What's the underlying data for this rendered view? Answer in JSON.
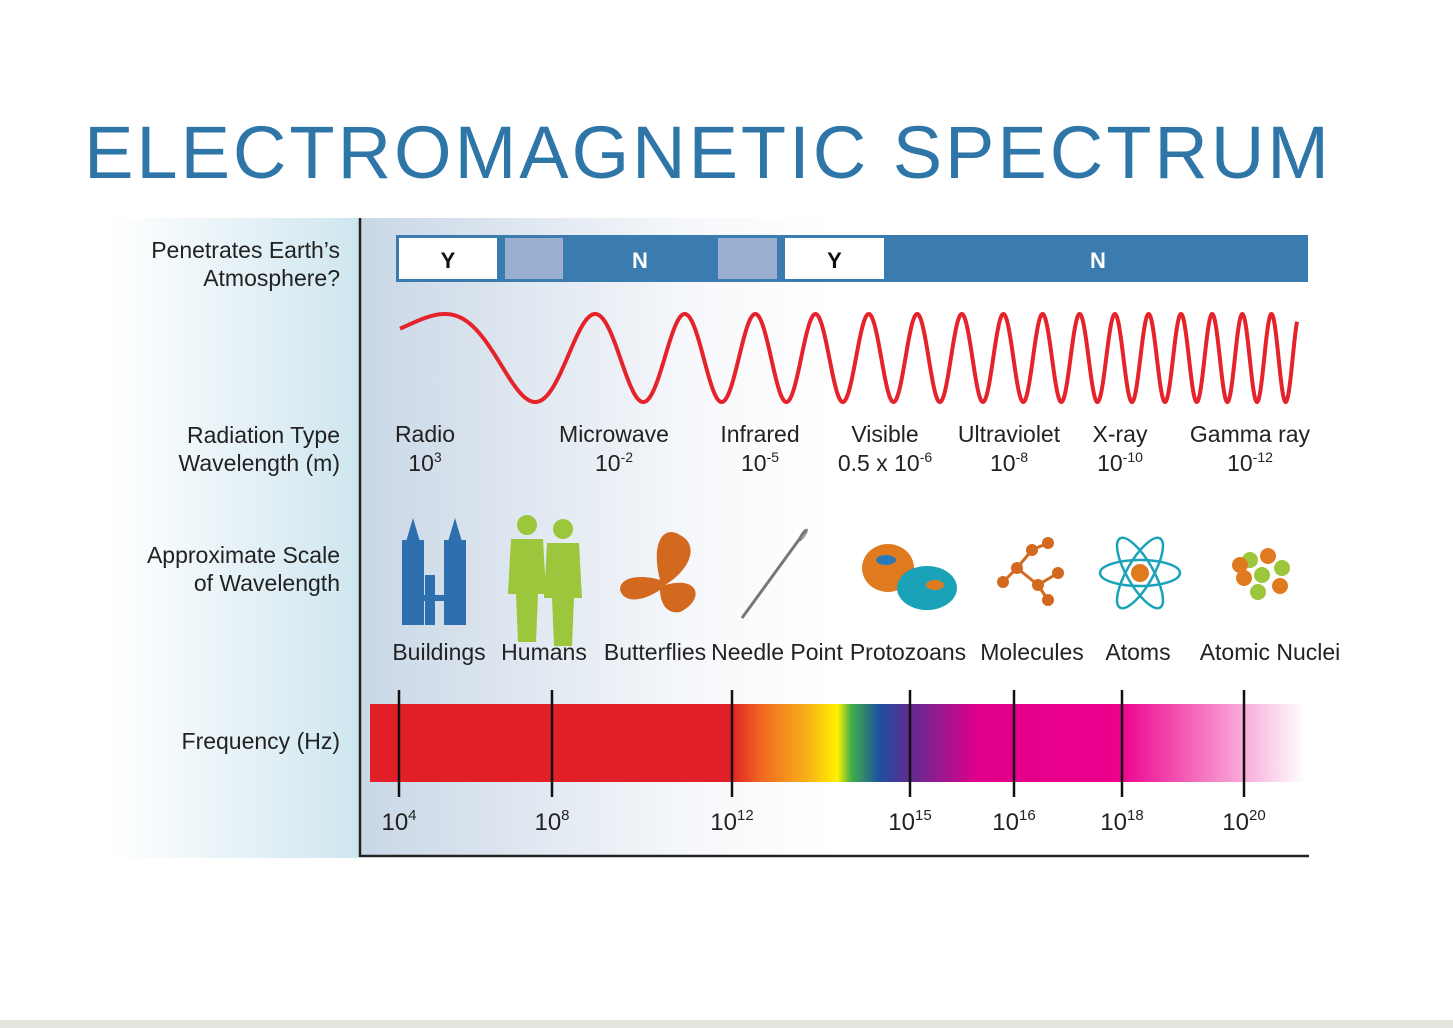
{
  "title": "ELECTROMAGNETIC SPECTRUM",
  "row_labels": {
    "atmosphere": [
      "Penetrates Earth’s",
      "Atmosphere?"
    ],
    "radiation": [
      "Radiation Type",
      "Wavelength (m)"
    ],
    "scale": [
      "Approximate Scale",
      "of Wavelength"
    ],
    "frequency": [
      "Frequency (Hz)"
    ]
  },
  "atmosphere": [
    "Y",
    "N",
    "Y",
    "N"
  ],
  "radiation_types": [
    {
      "name": "Radio",
      "base": "10",
      "exp": "3"
    },
    {
      "name": "Microwave",
      "base": "10",
      "exp": "-2"
    },
    {
      "name": "Infrared",
      "base": "10",
      "exp": "-5"
    },
    {
      "name": "Visible",
      "base": "0.5 x 10",
      "exp": "-6"
    },
    {
      "name": "Ultraviolet",
      "base": "10",
      "exp": "-8"
    },
    {
      "name": "X-ray",
      "base": "10",
      "exp": "-10"
    },
    {
      "name": "Gamma ray",
      "base": "10",
      "exp": "-12"
    }
  ],
  "scale_objects": [
    "Buildings",
    "Humans",
    "Butterflies",
    "Needle Point",
    "Protozoans",
    "Molecules",
    "Atoms",
    "Atomic Nuclei"
  ],
  "frequency_ticks": [
    {
      "base": "10",
      "exp": "4"
    },
    {
      "base": "10",
      "exp": "8"
    },
    {
      "base": "10",
      "exp": "12"
    },
    {
      "base": "10",
      "exp": "15"
    },
    {
      "base": "10",
      "exp": "16"
    },
    {
      "base": "10",
      "exp": "18"
    },
    {
      "base": "10",
      "exp": "20"
    }
  ]
}
